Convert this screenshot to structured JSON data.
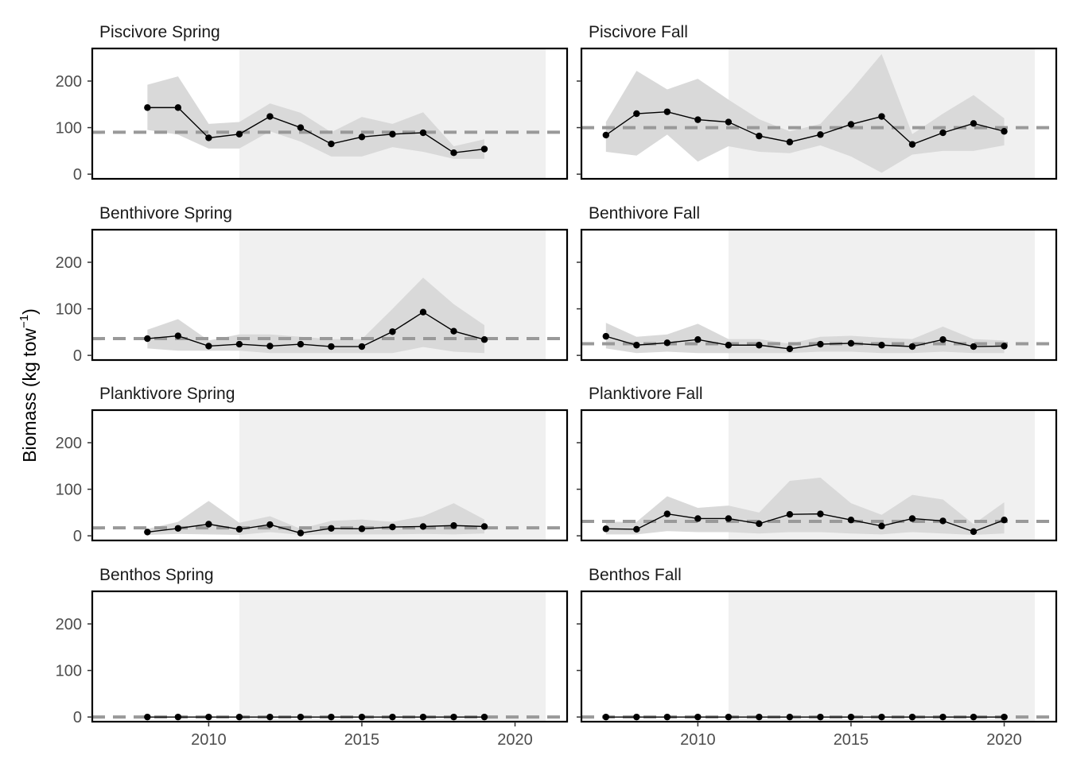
{
  "chart_data": {
    "type": "line",
    "ylabel": "Biomass (kg tow",
    "ylabel_superscript": "−1",
    "ylabel_suffix": ")",
    "xlim": [
      2006.2,
      2021.7
    ],
    "ylim": [
      -10,
      270
    ],
    "x_ticks": [
      2010,
      2015,
      2020
    ],
    "y_ticks": [
      0,
      100,
      200
    ],
    "shaded_period": [
      2011,
      2021
    ],
    "colors": {
      "line": "#000000",
      "ci": "#d9d9d9",
      "shade": "#f0f0f0",
      "mean": "#999999"
    },
    "panels": [
      {
        "title": "Piscivore Spring",
        "mean": 90,
        "x": [
          2008,
          2009,
          2010,
          2011,
          2012,
          2013,
          2014,
          2015,
          2016,
          2017,
          2018,
          2019
        ],
        "y": [
          143,
          143,
          78,
          86,
          124,
          100,
          65,
          80,
          86,
          89,
          46,
          54
        ],
        "lower": [
          95,
          85,
          55,
          55,
          92,
          70,
          38,
          38,
          58,
          48,
          33,
          33
        ],
        "upper": [
          192,
          210,
          108,
          112,
          152,
          132,
          90,
          123,
          108,
          133,
          60,
          75
        ]
      },
      {
        "title": "Piscivore Fall",
        "mean": 100,
        "x": [
          2007,
          2008,
          2009,
          2010,
          2011,
          2012,
          2013,
          2014,
          2015,
          2016,
          2017,
          2018,
          2019,
          2020
        ],
        "y": [
          84,
          130,
          134,
          117,
          112,
          82,
          69,
          85,
          107,
          124,
          64,
          89,
          109,
          92
        ],
        "lower": [
          48,
          40,
          85,
          27,
          60,
          48,
          45,
          62,
          38,
          3,
          42,
          50,
          50,
          62
        ],
        "upper": [
          112,
          222,
          182,
          205,
          160,
          118,
          92,
          108,
          180,
          258,
          86,
          130,
          170,
          120
        ]
      },
      {
        "title": "Benthivore Spring",
        "mean": 36,
        "x": [
          2008,
          2009,
          2010,
          2011,
          2012,
          2013,
          2014,
          2015,
          2016,
          2017,
          2018,
          2019
        ],
        "y": [
          36,
          42,
          20,
          24,
          20,
          24,
          19,
          19,
          51,
          93,
          52,
          34
        ],
        "lower": [
          15,
          10,
          10,
          10,
          5,
          5,
          5,
          5,
          5,
          18,
          8,
          5
        ],
        "upper": [
          55,
          78,
          32,
          45,
          45,
          40,
          35,
          35,
          100,
          167,
          110,
          65
        ]
      },
      {
        "title": "Benthivore Fall",
        "mean": 25,
        "x": [
          2007,
          2008,
          2009,
          2010,
          2011,
          2012,
          2013,
          2014,
          2015,
          2016,
          2017,
          2018,
          2019,
          2020
        ],
        "y": [
          41,
          22,
          27,
          34,
          22,
          22,
          14,
          24,
          26,
          22,
          19,
          34,
          19,
          20
        ],
        "lower": [
          15,
          5,
          8,
          5,
          5,
          5,
          5,
          8,
          8,
          5,
          5,
          8,
          5,
          5
        ],
        "upper": [
          70,
          40,
          45,
          68,
          35,
          35,
          25,
          40,
          42,
          38,
          35,
          62,
          35,
          32
        ]
      },
      {
        "title": "Planktivore Spring",
        "mean": 17,
        "x": [
          2008,
          2009,
          2010,
          2011,
          2012,
          2013,
          2014,
          2015,
          2016,
          2017,
          2018,
          2019
        ],
        "y": [
          8,
          16,
          25,
          14,
          24,
          6,
          16,
          15,
          19,
          20,
          22,
          20
        ],
        "lower": [
          2,
          4,
          3,
          2,
          8,
          2,
          3,
          3,
          3,
          4,
          3,
          5
        ],
        "upper": [
          15,
          30,
          75,
          28,
          42,
          15,
          32,
          35,
          30,
          42,
          70,
          35
        ]
      },
      {
        "title": "Planktivore Fall",
        "mean": 31,
        "x": [
          2007,
          2008,
          2009,
          2010,
          2011,
          2012,
          2013,
          2014,
          2015,
          2016,
          2017,
          2018,
          2019,
          2020
        ],
        "y": [
          15,
          14,
          47,
          37,
          37,
          26,
          46,
          47,
          34,
          21,
          37,
          32,
          9,
          34
        ],
        "lower": [
          3,
          3,
          10,
          8,
          8,
          5,
          8,
          8,
          5,
          3,
          8,
          5,
          2,
          5
        ],
        "upper": [
          30,
          30,
          85,
          60,
          65,
          50,
          118,
          125,
          70,
          45,
          88,
          78,
          25,
          72
        ]
      },
      {
        "title": "Benthos Spring",
        "mean": 0,
        "x": [
          2008,
          2009,
          2010,
          2011,
          2012,
          2013,
          2014,
          2015,
          2016,
          2017,
          2018,
          2019
        ],
        "y": [
          0,
          0,
          0,
          0,
          0,
          0,
          0,
          0,
          0,
          0,
          0,
          0
        ],
        "lower": [
          0,
          0,
          0,
          0,
          0,
          0,
          0,
          0,
          0,
          0,
          0,
          0
        ],
        "upper": [
          0,
          0,
          0,
          0,
          0,
          0,
          0,
          0,
          0,
          0,
          0,
          0
        ]
      },
      {
        "title": "Benthos Fall",
        "mean": 0,
        "x": [
          2007,
          2008,
          2009,
          2010,
          2011,
          2012,
          2013,
          2014,
          2015,
          2016,
          2017,
          2018,
          2019,
          2020
        ],
        "y": [
          0,
          0,
          0,
          0,
          0,
          0,
          0,
          0,
          0,
          0,
          0,
          0,
          0,
          0
        ],
        "lower": [
          0,
          0,
          0,
          0,
          0,
          0,
          0,
          0,
          0,
          0,
          0,
          0,
          0,
          0
        ],
        "upper": [
          0,
          0,
          0,
          0,
          0,
          0,
          0,
          0,
          0,
          0,
          0,
          0,
          0,
          0
        ]
      }
    ]
  }
}
